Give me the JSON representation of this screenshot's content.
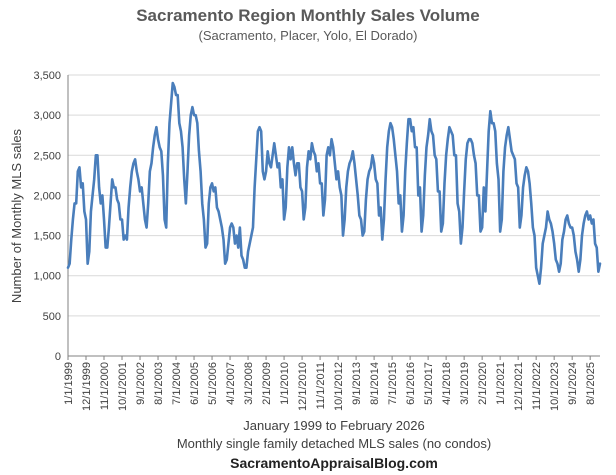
{
  "chart_data": {
    "type": "line",
    "title": "Sacramento Region Monthly Sales Volume",
    "subtitle": "(Sacramento, Placer, Yolo, El Dorado)",
    "xlabel": "January 1999 to February 2026",
    "xlabel_note": "Monthly single family detached MLS sales (no condos)",
    "source": "SacramentoAppraisalBlog.com",
    "ylabel": "Number of Monthly MLS sales",
    "ylim": [
      0,
      3500
    ],
    "yticks": [
      "0",
      "500",
      "1,000",
      "1,500",
      "2,000",
      "2,500",
      "3,000",
      "3,500"
    ],
    "xticks": [
      "1/1/1999",
      "12/1/1999",
      "11/1/2000",
      "10/1/2001",
      "9/1/2002",
      "8/1/2003",
      "7/1/2004",
      "6/1/2005",
      "5/1/2006",
      "4/1/2007",
      "3/1/2008",
      "2/1/2009",
      "1/1/2010",
      "12/1/2010",
      "11/1/2011",
      "10/1/2012",
      "9/1/2013",
      "8/1/2014",
      "7/1/2015",
      "6/1/2016",
      "5/1/2017",
      "4/1/2018",
      "3/1/2019",
      "2/1/2020",
      "1/1/2021",
      "12/1/2021",
      "11/1/2022",
      "10/1/2023",
      "9/1/2024",
      "8/1/2025"
    ],
    "grid": "horizontal",
    "legend": "none",
    "series_color": "#4a7ebb",
    "start": "1999-01",
    "annual_values": {
      "1999": [
        1100,
        1150,
        1450,
        1700,
        1900,
        1900,
        2300,
        2350,
        2100,
        2150,
        1800,
        1700
      ],
      "2000": [
        1150,
        1300,
        1800,
        2000,
        2200,
        2500,
        2500,
        2100,
        1900,
        2000,
        1700,
        1350
      ],
      "2001": [
        1350,
        1600,
        1900,
        2200,
        2100,
        2100,
        1950,
        1900,
        1700,
        1700,
        1450,
        1500
      ],
      "2002": [
        1450,
        1850,
        2100,
        2300,
        2400,
        2450,
        2300,
        2200,
        2050,
        2100,
        1900,
        1700
      ],
      "2003": [
        1600,
        1900,
        2300,
        2400,
        2600,
        2750,
        2850,
        2700,
        2600,
        2550,
        2250,
        1700
      ],
      "2004": [
        1600,
        2400,
        2900,
        3150,
        3400,
        3350,
        3250,
        3250,
        2900,
        2800,
        2600,
        2200
      ],
      "2005": [
        1900,
        2300,
        2750,
        3000,
        3100,
        3000,
        3000,
        2900,
        2550,
        2300,
        1900,
        1700
      ],
      "2006": [
        1350,
        1400,
        1900,
        2100,
        2150,
        2050,
        2100,
        1850,
        1800,
        1700,
        1600,
        1450
      ],
      "2007": [
        1150,
        1200,
        1400,
        1600,
        1650,
        1600,
        1400,
        1500,
        1350,
        1600,
        1250,
        1200
      ],
      "2008": [
        1100,
        1100,
        1300,
        1400,
        1500,
        1600,
        2100,
        2450,
        2800,
        2850,
        2800,
        2300
      ],
      "2009": [
        2200,
        2300,
        2550,
        2400,
        2350,
        2500,
        2650,
        2500,
        2350,
        2400,
        2100,
        2200
      ],
      "2010": [
        1700,
        1850,
        2350,
        2600,
        2450,
        2600,
        2400,
        2250,
        2400,
        2400,
        2100,
        2050
      ],
      "2011": [
        1700,
        1850,
        2350,
        2550,
        2450,
        2650,
        2550,
        2500,
        2300,
        2400,
        2150,
        2150
      ],
      "2012": [
        1750,
        1950,
        2500,
        2600,
        2500,
        2700,
        2600,
        2400,
        2200,
        2300,
        2100,
        2000
      ],
      "2013": [
        1500,
        1700,
        2100,
        2300,
        2400,
        2450,
        2550,
        2400,
        2200,
        2000,
        1750,
        1700
      ],
      "2014": [
        1500,
        1550,
        1950,
        2200,
        2300,
        2350,
        2500,
        2400,
        2200,
        2150,
        1750,
        1850
      ],
      "2015": [
        1450,
        1700,
        2200,
        2600,
        2800,
        2900,
        2850,
        2700,
        2500,
        2300,
        1900,
        2000
      ],
      "2016": [
        1550,
        1750,
        2300,
        2650,
        2950,
        2950,
        2800,
        2850,
        2600,
        2600,
        2000,
        2100
      ],
      "2017": [
        1550,
        1750,
        2250,
        2600,
        2750,
        2950,
        2800,
        2750,
        2500,
        2450,
        2050,
        2050
      ],
      "2018": [
        1550,
        1650,
        2150,
        2500,
        2700,
        2850,
        2800,
        2750,
        2500,
        2500,
        1900,
        1800
      ],
      "2019": [
        1400,
        1600,
        2050,
        2450,
        2650,
        2700,
        2700,
        2650,
        2500,
        2400,
        2000,
        2000
      ],
      "2020": [
        1550,
        1600,
        2100,
        1800,
        2300,
        2800,
        3050,
        2900,
        2900,
        2800,
        2400,
        2200
      ],
      "2021": [
        1550,
        1700,
        2300,
        2600,
        2750,
        2850,
        2700,
        2550,
        2500,
        2450,
        2150,
        2100
      ],
      "2022": [
        1600,
        1750,
        2100,
        2250,
        2350,
        2300,
        2150,
        1900,
        1600,
        1500,
        1100,
        1000
      ],
      "2023": [
        900,
        1100,
        1400,
        1500,
        1600,
        1800,
        1700,
        1650,
        1550,
        1400,
        1200,
        1150
      ],
      "2024": [
        1050,
        1150,
        1450,
        1550,
        1700,
        1750,
        1650,
        1600,
        1600,
        1500,
        1300,
        1200
      ],
      "2025": [
        1050,
        1200,
        1500,
        1650,
        1750,
        1800,
        1700,
        1750,
        1650,
        1700,
        1400,
        1350
      ],
      "2026": [
        1050,
        1150
      ]
    }
  }
}
